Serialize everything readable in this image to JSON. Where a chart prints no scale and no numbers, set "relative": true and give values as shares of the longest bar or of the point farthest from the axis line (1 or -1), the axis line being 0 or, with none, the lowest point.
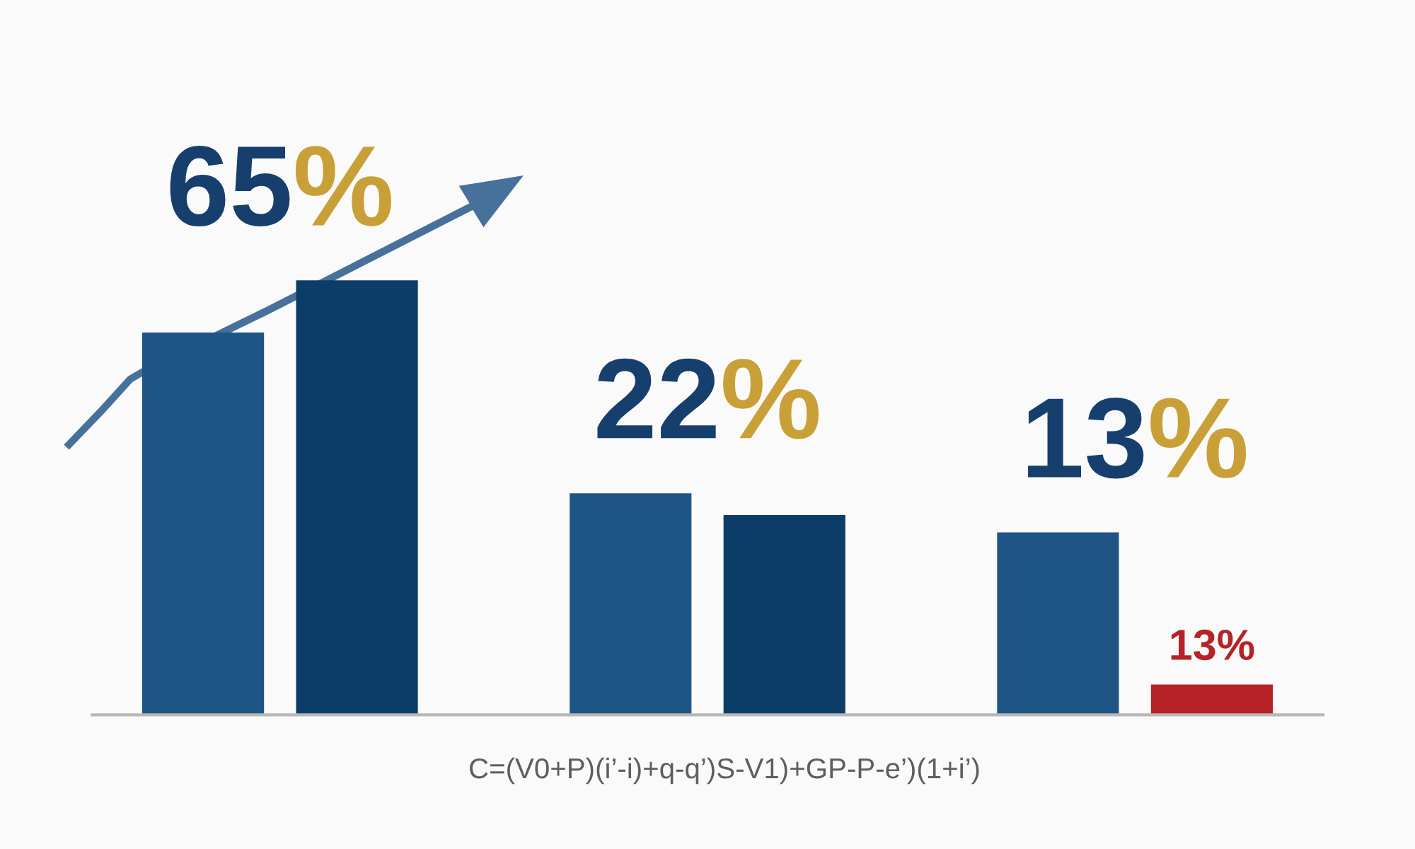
{
  "chart_data": {
    "type": "bar",
    "relative": true,
    "categories": [
      null,
      null,
      null
    ],
    "series": [
      {
        "color": "#1f5585",
        "values": [
          0.88,
          0.51,
          0.42
        ]
      },
      {
        "colors": [
          "#0c3d68",
          "#0c3d68",
          "#b52326"
        ],
        "values": [
          1,
          0.46,
          0.07
        ]
      }
    ],
    "annotations": [
      "65%",
      "22%",
      "13%",
      {
        "text": "13%",
        "y": 0.07
      },
      "C=(V0+P)(i’-i)+q-q’)S-V1)+GP-P-e’)(1+i’)"
    ]
  }
}
